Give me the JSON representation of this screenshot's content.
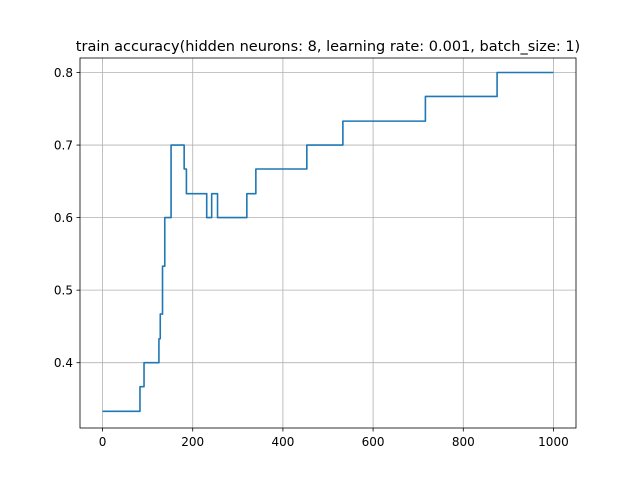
{
  "chart_data": {
    "type": "line",
    "title": "train accuracy(hidden neurons: 8, learning rate: 0.001, batch_size: 1)",
    "xlabel": "",
    "ylabel": "",
    "xlim": [
      -50,
      1050
    ],
    "ylim": [
      0.31,
      0.82
    ],
    "xticks": [
      0,
      200,
      400,
      600,
      800,
      1000
    ],
    "yticks": [
      0.4,
      0.5,
      0.6,
      0.7,
      0.8
    ],
    "xtick_labels": [
      "0",
      "200",
      "400",
      "600",
      "800",
      "1000"
    ],
    "ytick_labels": [
      "0.4",
      "0.5",
      "0.6",
      "0.7",
      "0.8"
    ],
    "grid": true,
    "series": [
      {
        "color": "#1f77b4",
        "x": [
          0,
          83,
          83,
          92,
          92,
          125,
          125,
          128,
          128,
          133,
          133,
          138,
          138,
          152,
          152,
          176,
          176,
          181,
          181,
          186,
          186,
          191,
          191,
          196,
          196,
          231,
          231,
          242,
          242,
          255,
          255,
          320,
          320,
          340,
          340,
          453,
          453,
          530,
          530,
          533,
          533,
          716,
          716,
          875,
          875,
          878,
          878,
          1000
        ],
        "y": [
          0.333,
          0.333,
          0.367,
          0.367,
          0.4,
          0.4,
          0.433,
          0.433,
          0.467,
          0.467,
          0.533,
          0.533,
          0.6,
          0.6,
          0.7,
          0.7,
          0.7,
          0.7,
          0.667,
          0.667,
          0.633,
          0.633,
          0.633,
          0.633,
          0.633,
          0.633,
          0.6,
          0.6,
          0.633,
          0.633,
          0.6,
          0.6,
          0.633,
          0.633,
          0.667,
          0.667,
          0.7,
          0.7,
          0.7,
          0.7,
          0.733,
          0.733,
          0.767,
          0.767,
          0.8,
          0.8,
          0.8,
          0.8
        ]
      }
    ]
  }
}
